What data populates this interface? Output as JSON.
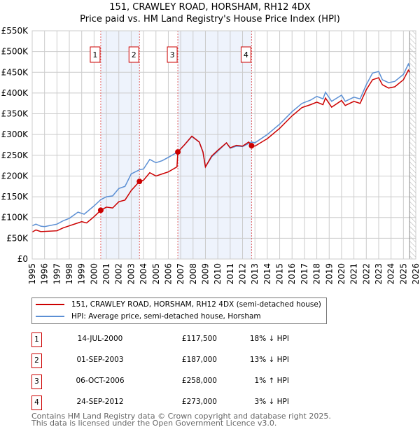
{
  "title": "151, CRAWLEY ROAD, HORSHAM, RH12 4DX",
  "subtitle": "Price paid vs. HM Land Registry's House Price Index (HPI)",
  "colors": {
    "property": "#cc0000",
    "hpi": "#5b8fd4",
    "shade": "#eef3fc"
  },
  "chart_data": {
    "type": "line",
    "xlim": [
      1995,
      2026
    ],
    "ylim": [
      0,
      550000
    ],
    "yticks": [
      "£0",
      "£50K",
      "£100K",
      "£150K",
      "£200K",
      "£250K",
      "£300K",
      "£350K",
      "£400K",
      "£450K",
      "£500K",
      "£550K"
    ],
    "xticks": [
      "1995",
      "1996",
      "1997",
      "1998",
      "1999",
      "2000",
      "2001",
      "2002",
      "2003",
      "2004",
      "2005",
      "2006",
      "2007",
      "2008",
      "2009",
      "2010",
      "2011",
      "2012",
      "2013",
      "2014",
      "2015",
      "2016",
      "2017",
      "2018",
      "2019",
      "2020",
      "2021",
      "2022",
      "2023",
      "2024",
      "2025",
      "2026"
    ],
    "shaded_ranges": [
      [
        2000.54,
        2003.67
      ],
      [
        2006.77,
        2012.73
      ]
    ],
    "forecast_from": 2025.5,
    "series": [
      {
        "name": "151, CRAWLEY ROAD, HORSHAM, RH12 4DX (semi-detached house)",
        "points": [
          [
            1995,
            65000
          ],
          [
            1995.3,
            70000
          ],
          [
            1995.7,
            66000
          ],
          [
            1997,
            68000
          ],
          [
            1997.5,
            75000
          ],
          [
            1998,
            80000
          ],
          [
            1998.5,
            85000
          ],
          [
            1999,
            90000
          ],
          [
            1999.4,
            87000
          ],
          [
            2000,
            102000
          ],
          [
            2000.54,
            117500
          ],
          [
            2001,
            125000
          ],
          [
            2001.5,
            123000
          ],
          [
            2002,
            138000
          ],
          [
            2002.5,
            142000
          ],
          [
            2003,
            165000
          ],
          [
            2003.67,
            187000
          ],
          [
            2004,
            190000
          ],
          [
            2004.5,
            208000
          ],
          [
            2005,
            200000
          ],
          [
            2005.5,
            205000
          ],
          [
            2006,
            210000
          ],
          [
            2006.7,
            222000
          ],
          [
            2006.77,
            258000
          ],
          [
            2007.3,
            275000
          ],
          [
            2007.9,
            296000
          ],
          [
            2008.5,
            282000
          ],
          [
            2008.8,
            258000
          ],
          [
            2009,
            222000
          ],
          [
            2009.5,
            248000
          ],
          [
            2010,
            262000
          ],
          [
            2010.7,
            280000
          ],
          [
            2011,
            268000
          ],
          [
            2011.5,
            274000
          ],
          [
            2012,
            272000
          ],
          [
            2012.5,
            282000
          ],
          [
            2012.73,
            273000
          ],
          [
            2013,
            272000
          ],
          [
            2014,
            290000
          ],
          [
            2015,
            315000
          ],
          [
            2016,
            345000
          ],
          [
            2016.8,
            365000
          ],
          [
            2017.5,
            372000
          ],
          [
            2018,
            378000
          ],
          [
            2018.5,
            372000
          ],
          [
            2018.7,
            388000
          ],
          [
            2019.2,
            366000
          ],
          [
            2020,
            382000
          ],
          [
            2020.3,
            370000
          ],
          [
            2021,
            380000
          ],
          [
            2021.5,
            375000
          ],
          [
            2022,
            408000
          ],
          [
            2022.5,
            432000
          ],
          [
            2023,
            437000
          ],
          [
            2023.3,
            420000
          ],
          [
            2023.8,
            412000
          ],
          [
            2024.3,
            415000
          ],
          [
            2025,
            432000
          ],
          [
            2025.4,
            455000
          ],
          [
            2025.5,
            450000
          ]
        ]
      },
      {
        "name": "HPI: Average price, semi-detached house, Horsham",
        "points": [
          [
            1995,
            80000
          ],
          [
            1995.3,
            84000
          ],
          [
            1995.7,
            79000
          ],
          [
            1996,
            78000
          ],
          [
            1997,
            84000
          ],
          [
            1997.5,
            92000
          ],
          [
            1998,
            98000
          ],
          [
            1998.7,
            113000
          ],
          [
            1999.2,
            108000
          ],
          [
            2000,
            128000
          ],
          [
            2000.54,
            143000
          ],
          [
            2001,
            150000
          ],
          [
            2001.5,
            152000
          ],
          [
            2002,
            170000
          ],
          [
            2002.5,
            175000
          ],
          [
            2003,
            205000
          ],
          [
            2003.67,
            215000
          ],
          [
            2004,
            217000
          ],
          [
            2004.5,
            240000
          ],
          [
            2005,
            232000
          ],
          [
            2005.5,
            237000
          ],
          [
            2006,
            245000
          ],
          [
            2006.77,
            258000
          ],
          [
            2007.3,
            275000
          ],
          [
            2007.9,
            295000
          ],
          [
            2008.5,
            282000
          ],
          [
            2008.8,
            258000
          ],
          [
            2009,
            222000
          ],
          [
            2009.5,
            246000
          ],
          [
            2010,
            260000
          ],
          [
            2010.7,
            280000
          ],
          [
            2011,
            267000
          ],
          [
            2011.5,
            272000
          ],
          [
            2012,
            271000
          ],
          [
            2012.73,
            282000
          ],
          [
            2013,
            280000
          ],
          [
            2014,
            300000
          ],
          [
            2015,
            325000
          ],
          [
            2016,
            355000
          ],
          [
            2016.8,
            375000
          ],
          [
            2017.5,
            383000
          ],
          [
            2018,
            392000
          ],
          [
            2018.5,
            386000
          ],
          [
            2018.7,
            402000
          ],
          [
            2019.2,
            380000
          ],
          [
            2020,
            395000
          ],
          [
            2020.3,
            380000
          ],
          [
            2021,
            390000
          ],
          [
            2021.5,
            386000
          ],
          [
            2022,
            420000
          ],
          [
            2022.5,
            448000
          ],
          [
            2023,
            452000
          ],
          [
            2023.3,
            432000
          ],
          [
            2023.8,
            425000
          ],
          [
            2024.3,
            428000
          ],
          [
            2025,
            445000
          ],
          [
            2025.4,
            470000
          ],
          [
            2025.5,
            463000
          ]
        ]
      }
    ],
    "sales": [
      {
        "label": "1",
        "x": 2000.54,
        "y": 117500
      },
      {
        "label": "2",
        "x": 2003.67,
        "y": 187000
      },
      {
        "label": "3",
        "x": 2006.77,
        "y": 258000
      },
      {
        "label": "4",
        "x": 2012.73,
        "y": 273000
      }
    ]
  },
  "legend": {
    "property": "151, CRAWLEY ROAD, HORSHAM, RH12 4DX (semi-detached house)",
    "hpi": "HPI: Average price, semi-detached house, Horsham"
  },
  "table": [
    {
      "num": "1",
      "date": "14-JUL-2000",
      "price": "£117,500",
      "hpi": "18% ↓ HPI"
    },
    {
      "num": "2",
      "date": "01-SEP-2003",
      "price": "£187,000",
      "hpi": "13% ↓ HPI"
    },
    {
      "num": "3",
      "date": "06-OCT-2006",
      "price": "£258,000",
      "hpi": "1% ↑ HPI"
    },
    {
      "num": "4",
      "date": "24-SEP-2012",
      "price": "£273,000",
      "hpi": "3% ↓ HPI"
    }
  ],
  "footer": [
    "Contains HM Land Registry data © Crown copyright and database right 2025.",
    "This data is licensed under the Open Government Licence v3.0."
  ]
}
